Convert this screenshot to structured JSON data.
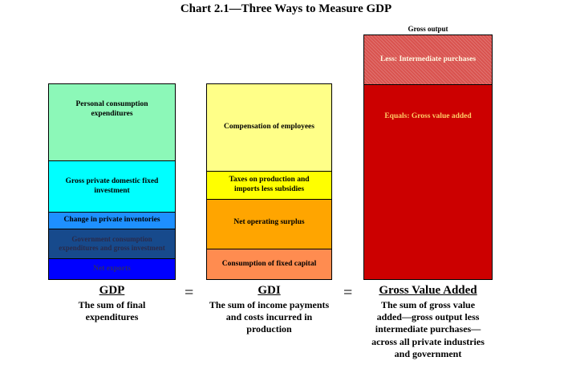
{
  "title": "Chart 2.1—Three Ways to Measure GDP",
  "columns": [
    {
      "heading": "GDP",
      "description": "The sum of final\nexpenditures",
      "segments": [
        {
          "label": "Personal consumption\nexpenditures",
          "color": "#8CF8B8"
        },
        {
          "label": "Gross private domestic fixed\ninvestment",
          "color": "#00FFFF"
        },
        {
          "label": "Change in private inventories",
          "color": "#1E90FF"
        },
        {
          "label": "Government consumption\nexpenditures and gross investment",
          "color": "#174A8C"
        },
        {
          "label": "Net exports",
          "color": "#0000FF"
        }
      ]
    },
    {
      "heading": "GDI",
      "description": "The sum of income payments\nand costs incurred in\nproduction",
      "segments": [
        {
          "label": "Compensation of employees",
          "color": "#FFFF88"
        },
        {
          "label": "Taxes on production and\nimports less subsidies",
          "color": "#FFFF00"
        },
        {
          "label": "Net operating surplus",
          "color": "#FFA500"
        },
        {
          "label": "Consumption of fixed capital",
          "color": "#FF8C50"
        }
      ]
    },
    {
      "heading": "Gross Value Added",
      "description": "The sum of gross value\nadded—gross output less\nintermediate purchases—\nacross all private industries\nand government",
      "top_label": "Gross output",
      "segments": [
        {
          "label": "Less: Intermediate purchases",
          "color": "#D9534F"
        },
        {
          "label": "Equals: Gross value added",
          "color": "#CC0000"
        }
      ]
    }
  ],
  "operators": [
    "=",
    "="
  ]
}
